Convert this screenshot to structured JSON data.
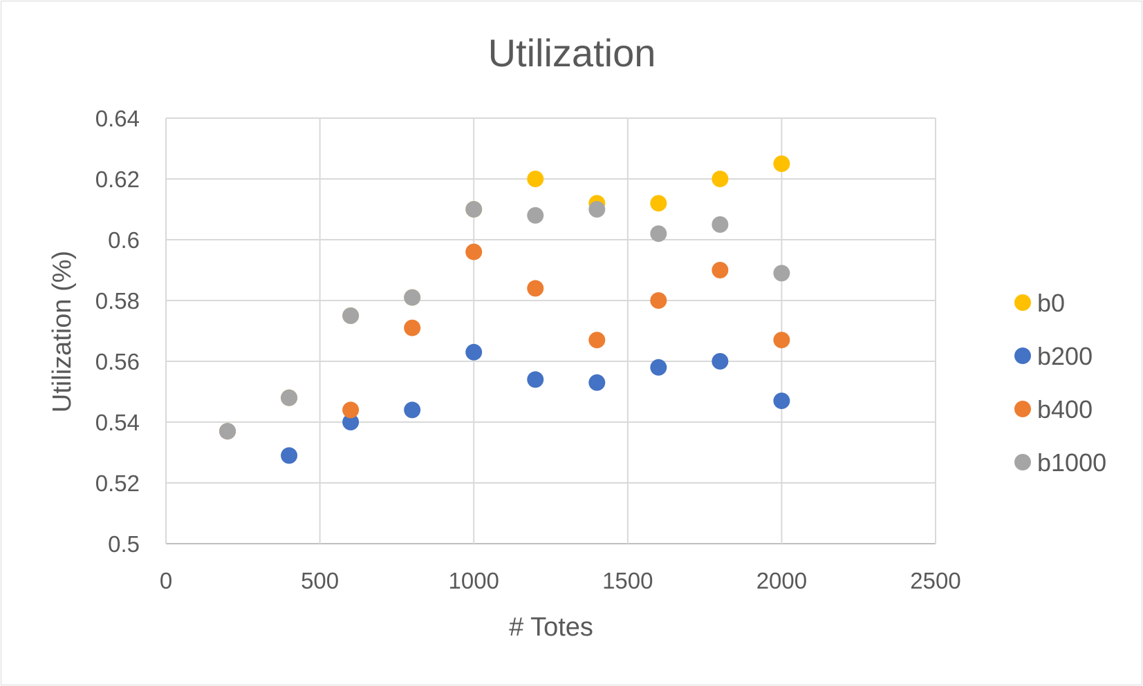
{
  "chart_data": {
    "type": "scatter",
    "title": "Utilization",
    "xlabel": "# Totes",
    "ylabel": "Utilization (%)",
    "xlim": [
      0,
      2500
    ],
    "ylim": [
      0.5,
      0.64
    ],
    "x_ticks": [
      "0",
      "500",
      "1000",
      "1500",
      "2000",
      "2500"
    ],
    "y_ticks": [
      "0.5",
      "0.52",
      "0.54",
      "0.56",
      "0.58",
      "0.6",
      "0.62",
      "0.64"
    ],
    "grid": true,
    "legend_position": "right",
    "series": [
      {
        "name": "b0",
        "color": "#FFC000",
        "points": [
          [
            200,
            0.537
          ],
          [
            400,
            0.548
          ],
          [
            600,
            0.575
          ],
          [
            800,
            0.581
          ],
          [
            1000,
            0.61
          ],
          [
            1200,
            0.62
          ],
          [
            1400,
            0.612
          ],
          [
            1600,
            0.612
          ],
          [
            1800,
            0.62
          ],
          [
            2000,
            0.625
          ]
        ]
      },
      {
        "name": "b200",
        "color": "#4472C4",
        "points": [
          [
            200,
            0.537
          ],
          [
            400,
            0.529
          ],
          [
            600,
            0.54
          ],
          [
            800,
            0.544
          ],
          [
            1000,
            0.563
          ],
          [
            1200,
            0.554
          ],
          [
            1400,
            0.553
          ],
          [
            1600,
            0.558
          ],
          [
            1800,
            0.56
          ],
          [
            2000,
            0.547
          ]
        ]
      },
      {
        "name": "b400",
        "color": "#ED7D31",
        "points": [
          [
            200,
            0.537
          ],
          [
            400,
            0.548
          ],
          [
            600,
            0.544
          ],
          [
            800,
            0.571
          ],
          [
            1000,
            0.596
          ],
          [
            1200,
            0.584
          ],
          [
            1400,
            0.567
          ],
          [
            1600,
            0.58
          ],
          [
            1800,
            0.59
          ],
          [
            2000,
            0.567
          ]
        ]
      },
      {
        "name": "b1000",
        "color": "#A5A5A5",
        "points": [
          [
            200,
            0.537
          ],
          [
            400,
            0.548
          ],
          [
            600,
            0.575
          ],
          [
            800,
            0.581
          ],
          [
            1000,
            0.61
          ],
          [
            1200,
            0.608
          ],
          [
            1400,
            0.61
          ],
          [
            1600,
            0.602
          ],
          [
            1800,
            0.605
          ],
          [
            2000,
            0.589
          ]
        ]
      }
    ]
  }
}
